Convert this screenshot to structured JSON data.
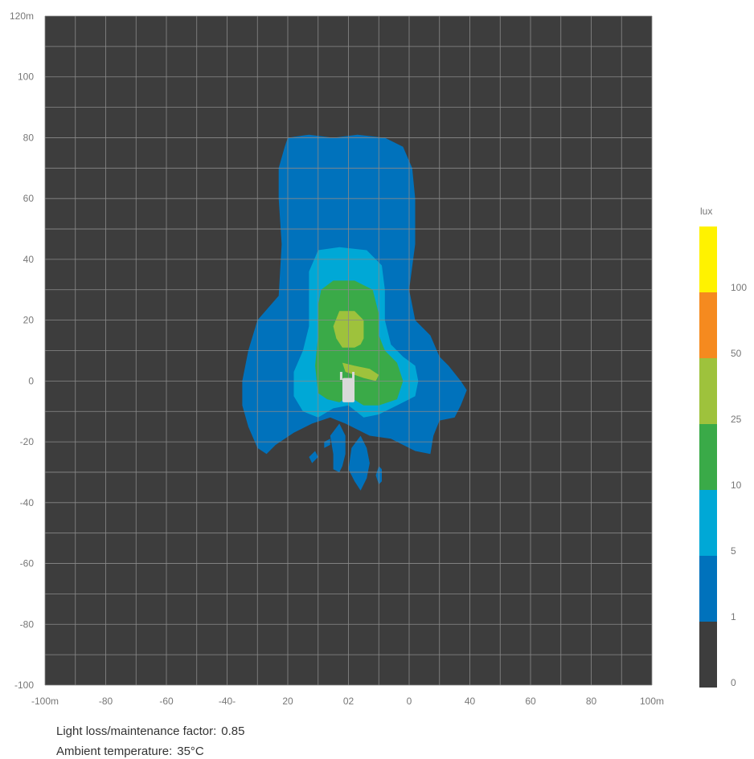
{
  "chart_data": {
    "type": "heatmap",
    "title": "",
    "x_tick_labels": [
      "-100m",
      "-80",
      "-60",
      "-40-",
      "20",
      "02",
      "0",
      "40",
      "60",
      "80",
      "100m"
    ],
    "y_tick_labels": [
      "120m",
      "100",
      "80",
      "60",
      "40",
      "20",
      "0",
      "-20",
      "-40",
      "-60",
      "-80",
      "-100"
    ],
    "xlim": [
      -100,
      100
    ],
    "ylim": [
      -100,
      120
    ],
    "grid": true,
    "background_color": "#3d3d3d",
    "grid_color": "#8a8a8a",
    "legend": {
      "title": "lux",
      "placement": "right",
      "bands": [
        {
          "color": "#3d3d3d",
          "label": "0"
        },
        {
          "color": "#0072bc",
          "label": "1"
        },
        {
          "color": "#00a8d6",
          "label": "5"
        },
        {
          "color": "#3aaa48",
          "label": "10"
        },
        {
          "color": "#9ec23c",
          "label": "25"
        },
        {
          "color": "#f58a1f",
          "label": "50"
        },
        {
          "color": "#fff200",
          "label": "100"
        }
      ]
    },
    "contours": [
      {
        "level": 1,
        "color": "#0072bc",
        "points": [
          [
            -20,
            80
          ],
          [
            -13,
            81
          ],
          [
            -5,
            80
          ],
          [
            3,
            81
          ],
          [
            12,
            80
          ],
          [
            18,
            77
          ],
          [
            21,
            70
          ],
          [
            22,
            60
          ],
          [
            22,
            45
          ],
          [
            20,
            30
          ],
          [
            22,
            20
          ],
          [
            27,
            15
          ],
          [
            30,
            8
          ],
          [
            33,
            5
          ],
          [
            37,
            0
          ],
          [
            39,
            -3
          ],
          [
            37,
            -8
          ],
          [
            35,
            -12
          ],
          [
            30,
            -13
          ],
          [
            28,
            -18
          ],
          [
            27,
            -24
          ],
          [
            22,
            -23
          ],
          [
            14,
            -19
          ],
          [
            7,
            -18
          ],
          [
            -1,
            -14
          ],
          [
            -6,
            -12
          ],
          [
            -12,
            -14
          ],
          [
            -18,
            -17
          ],
          [
            -24,
            -21
          ],
          [
            -27,
            -24
          ],
          [
            -30,
            -22
          ],
          [
            -33,
            -15
          ],
          [
            -35,
            -8
          ],
          [
            -35,
            0
          ],
          [
            -33,
            10
          ],
          [
            -30,
            20
          ],
          [
            -23,
            28
          ],
          [
            -22,
            45
          ],
          [
            -23,
            60
          ],
          [
            -23,
            70
          ],
          [
            -21,
            77
          ]
        ]
      },
      {
        "level": 1,
        "color": "#0072bc",
        "points": [
          [
            -3,
            -14
          ],
          [
            -1,
            -18
          ],
          [
            -1,
            -24
          ],
          [
            -2,
            -28
          ],
          [
            -3,
            -30
          ],
          [
            -5,
            -29
          ],
          [
            -5,
            -24
          ],
          [
            -6,
            -18
          ]
        ]
      },
      {
        "level": 1,
        "color": "#0072bc",
        "points": [
          [
            4,
            -18
          ],
          [
            6,
            -22
          ],
          [
            7,
            -27
          ],
          [
            6,
            -32
          ],
          [
            4,
            -36
          ],
          [
            2,
            -33
          ],
          [
            0,
            -29
          ],
          [
            1,
            -22
          ]
        ]
      },
      {
        "level": 1,
        "color": "#0072bc",
        "points": [
          [
            -13,
            -25
          ],
          [
            -11,
            -23
          ],
          [
            -10,
            -25
          ],
          [
            -12,
            -27
          ]
        ]
      },
      {
        "level": 1,
        "color": "#0072bc",
        "points": [
          [
            -8,
            -20
          ],
          [
            -6,
            -19
          ],
          [
            -6,
            -21
          ],
          [
            -8,
            -22
          ]
        ]
      },
      {
        "level": 1,
        "color": "#0072bc",
        "points": [
          [
            10,
            -28
          ],
          [
            11,
            -29
          ],
          [
            11,
            -33
          ],
          [
            10,
            -34
          ],
          [
            9,
            -31
          ]
        ]
      },
      {
        "level": 5,
        "color": "#00a8d6",
        "points": [
          [
            -10,
            43
          ],
          [
            -3,
            44
          ],
          [
            6,
            43
          ],
          [
            11,
            38
          ],
          [
            12,
            30
          ],
          [
            12,
            20
          ],
          [
            14,
            12
          ],
          [
            18,
            8
          ],
          [
            22,
            5
          ],
          [
            23,
            0
          ],
          [
            22,
            -5
          ],
          [
            16,
            -8
          ],
          [
            10,
            -11
          ],
          [
            5,
            -12
          ],
          [
            0,
            -8
          ],
          [
            -5,
            -9
          ],
          [
            -10,
            -12
          ],
          [
            -15,
            -10
          ],
          [
            -18,
            -5
          ],
          [
            -18,
            3
          ],
          [
            -15,
            10
          ],
          [
            -13,
            18
          ],
          [
            -13,
            28
          ],
          [
            -13,
            36
          ]
        ]
      },
      {
        "level": 10,
        "color": "#3aaa48",
        "points": [
          [
            -5,
            33
          ],
          [
            2,
            33
          ],
          [
            8,
            30
          ],
          [
            10,
            22
          ],
          [
            10,
            15
          ],
          [
            12,
            10
          ],
          [
            16,
            6
          ],
          [
            18,
            0
          ],
          [
            16,
            -6
          ],
          [
            10,
            -8
          ],
          [
            5,
            -8
          ],
          [
            0,
            -5
          ],
          [
            -3,
            -7
          ],
          [
            -7,
            -6
          ],
          [
            -10,
            -4
          ],
          [
            -11,
            5
          ],
          [
            -10,
            15
          ],
          [
            -10,
            25
          ],
          [
            -9,
            30
          ]
        ]
      },
      {
        "level": 25,
        "color": "#9ec23c",
        "points": [
          [
            -3,
            23
          ],
          [
            2,
            23
          ],
          [
            5,
            20
          ],
          [
            5,
            14
          ],
          [
            4,
            12
          ],
          [
            2,
            11
          ],
          [
            -2,
            11
          ],
          [
            -4,
            14
          ],
          [
            -5,
            18
          ]
        ]
      },
      {
        "level": 25,
        "color": "#9ec23c",
        "points": [
          [
            -2,
            6
          ],
          [
            2,
            5
          ],
          [
            7,
            4
          ],
          [
            10,
            2
          ],
          [
            9,
            0
          ],
          [
            5,
            1
          ],
          [
            2,
            2
          ],
          [
            -1,
            3
          ]
        ]
      }
    ]
  },
  "footer": {
    "light_loss_label": "Light loss/maintenance factor:",
    "light_loss_value": "0.85",
    "ambient_label": "Ambient temperature:",
    "ambient_value": "35°C"
  }
}
